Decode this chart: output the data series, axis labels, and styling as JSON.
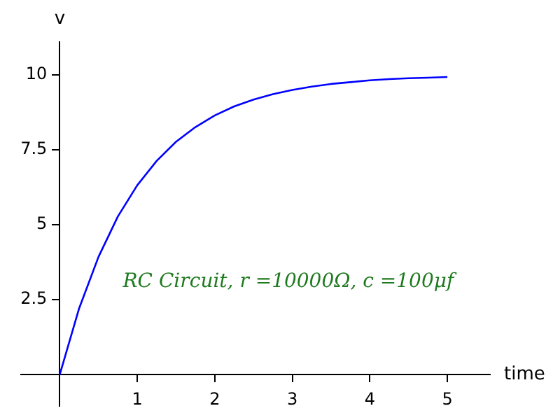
{
  "chart_data": {
    "type": "line",
    "xlabel": "time",
    "ylabel": "v",
    "x": [
      0,
      0.25,
      0.5,
      0.75,
      1,
      1.25,
      1.5,
      1.75,
      2,
      2.25,
      2.5,
      2.75,
      3,
      3.25,
      3.5,
      3.75,
      4,
      4.25,
      4.5,
      4.75,
      5
    ],
    "series": [
      {
        "color": "#0000ff",
        "values": [
          0,
          2.21,
          3.93,
          5.28,
          6.32,
          7.13,
          7.77,
          8.26,
          8.65,
          8.95,
          9.18,
          9.36,
          9.5,
          9.61,
          9.7,
          9.76,
          9.82,
          9.86,
          9.89,
          9.91,
          9.93
        ]
      }
    ],
    "xlim": [
      -0.5,
      5.55
    ],
    "ylim": [
      -1.05,
      11.1
    ],
    "xticks": [
      1,
      2,
      3,
      4,
      5
    ],
    "yticks": [
      2.5,
      5,
      7.5,
      10
    ],
    "annotations": [
      "RC Circuit, r =10000Ω, c =100μf"
    ],
    "grid": false,
    "legend": false,
    "marker": "none",
    "line_style": "solid"
  }
}
